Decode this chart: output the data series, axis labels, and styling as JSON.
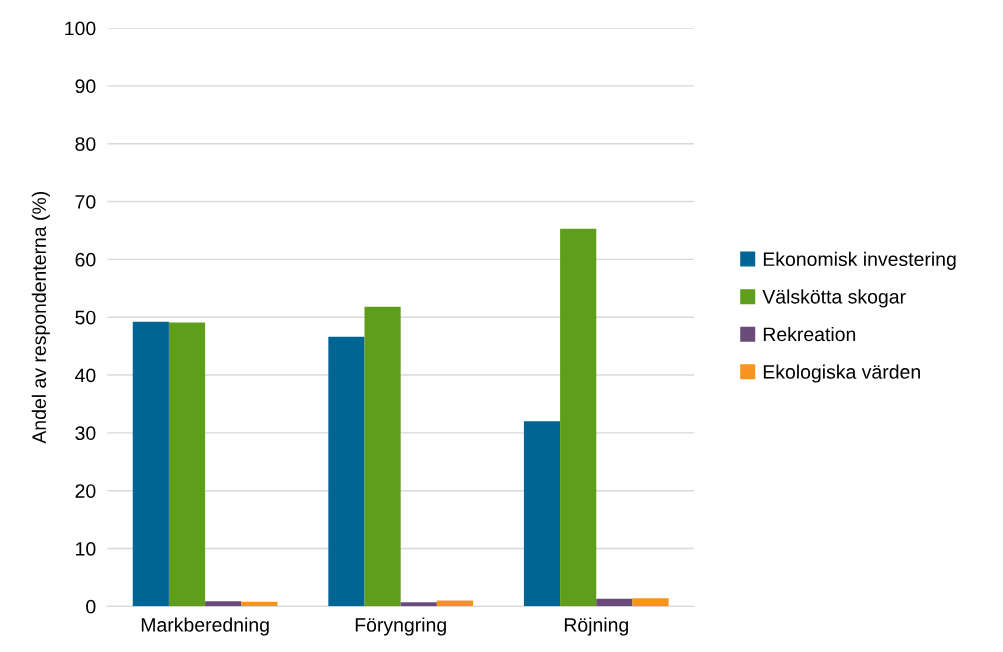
{
  "chart_data": {
    "type": "bar",
    "ylabel": "Andel av respondenterna (%)",
    "categories": [
      "Markberedning",
      "Föryngring",
      "Röjning"
    ],
    "series": [
      {
        "name": "Ekonomisk investering",
        "color": "#006595",
        "values": [
          49.2,
          46.6,
          32.0
        ]
      },
      {
        "name": "Välskötta skogar",
        "color": "#5f9e1c",
        "values": [
          49.1,
          51.8,
          65.3
        ]
      },
      {
        "name": "Rekreation",
        "color": "#6a4a78",
        "values": [
          0.9,
          0.7,
          1.3
        ]
      },
      {
        "name": "Ekologiska värden",
        "color": "#f7941d",
        "values": [
          0.8,
          1.0,
          1.4
        ]
      }
    ],
    "ylim": [
      0,
      100
    ],
    "yticks": [
      0,
      10,
      20,
      30,
      40,
      50,
      60,
      70,
      80,
      90,
      100
    ],
    "grid": "y",
    "legend": "right"
  }
}
